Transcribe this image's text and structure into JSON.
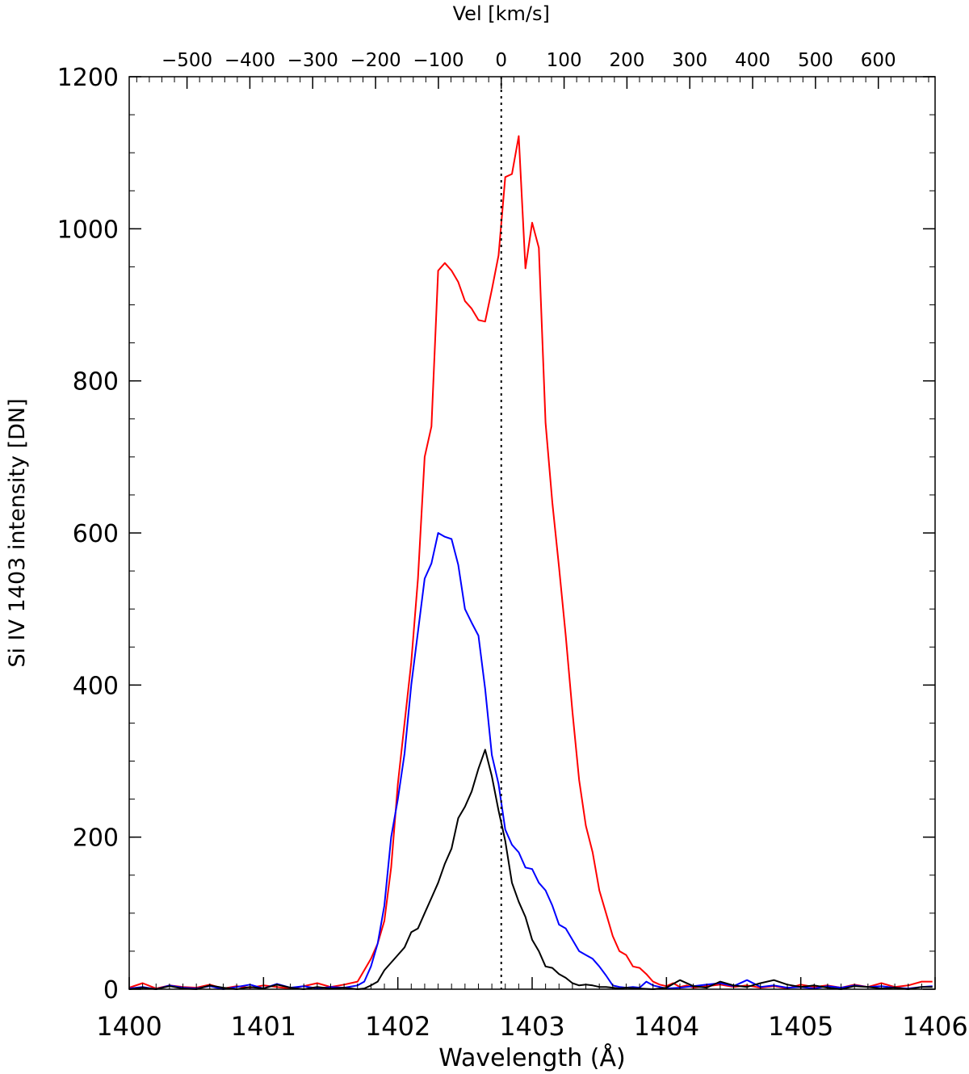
{
  "chart_data": {
    "type": "line",
    "xlabel": "Wavelength (Å)",
    "ylabel": "Si IV 1403 intensity [DN]",
    "top_xlabel": "Vel [km/s]",
    "xlim": [
      1400,
      1406
    ],
    "ylim": [
      0,
      1200
    ],
    "x_ticks": [
      1400,
      1401,
      1402,
      1403,
      1404,
      1405,
      1406
    ],
    "y_ticks": [
      0,
      200,
      400,
      600,
      800,
      1000,
      1200
    ],
    "top_ticks": [
      "−500",
      "−400",
      "−300",
      "−200",
      "−100",
      "0",
      "100",
      "200",
      "300",
      "400",
      "500",
      "600"
    ],
    "top_tick_values": [
      -500,
      -400,
      -300,
      -200,
      -100,
      0,
      100,
      200,
      300,
      400,
      500,
      600
    ],
    "rest_wavelength": 1402.77,
    "reference_line": {
      "x": 1402.77,
      "style": "dotted"
    },
    "grid": false,
    "series": [
      {
        "color": "#ff0000",
        "x": [
          1400.0,
          1400.1,
          1400.2,
          1400.3,
          1400.4,
          1400.5,
          1400.6,
          1400.7,
          1400.8,
          1400.9,
          1401.0,
          1401.1,
          1401.2,
          1401.3,
          1401.4,
          1401.5,
          1401.6,
          1401.7,
          1401.75,
          1401.8,
          1401.85,
          1401.9,
          1401.95,
          1402.0,
          1402.05,
          1402.1,
          1402.15,
          1402.2,
          1402.25,
          1402.3,
          1402.35,
          1402.4,
          1402.45,
          1402.5,
          1402.55,
          1402.6,
          1402.65,
          1402.7,
          1402.75,
          1402.8,
          1402.85,
          1402.9,
          1402.95,
          1403.0,
          1403.05,
          1403.1,
          1403.15,
          1403.2,
          1403.25,
          1403.3,
          1403.35,
          1403.4,
          1403.45,
          1403.5,
          1403.55,
          1403.6,
          1403.65,
          1403.7,
          1403.75,
          1403.8,
          1403.85,
          1403.9,
          1403.95,
          1404.0,
          1404.05,
          1404.1,
          1404.15,
          1404.2,
          1404.3,
          1404.4,
          1404.5,
          1404.6,
          1404.7,
          1404.8,
          1404.9,
          1405.0,
          1405.1,
          1405.2,
          1405.3,
          1405.4,
          1405.5,
          1405.6,
          1405.7,
          1405.8,
          1405.9,
          1405.98
        ],
        "y": [
          2,
          8,
          1,
          5,
          3,
          2,
          6,
          1,
          4,
          2,
          5,
          3,
          1,
          4,
          8,
          3,
          6,
          10,
          25,
          40,
          60,
          90,
          160,
          270,
          350,
          430,
          540,
          700,
          740,
          945,
          955,
          945,
          930,
          905,
          895,
          880,
          878,
          920,
          965,
          1068,
          1072,
          1122,
          948,
          1008,
          975,
          745,
          640,
          555,
          465,
          365,
          275,
          215,
          180,
          130,
          100,
          70,
          50,
          45,
          30,
          28,
          20,
          10,
          6,
          4,
          8,
          3,
          5,
          2,
          4,
          6,
          3,
          5,
          2,
          4,
          1,
          6,
          3,
          5,
          2,
          6,
          3,
          8,
          3,
          5,
          10,
          10
        ]
      },
      {
        "color": "#0000ff",
        "x": [
          1400.0,
          1400.1,
          1400.2,
          1400.3,
          1400.4,
          1400.5,
          1400.6,
          1400.7,
          1400.8,
          1400.9,
          1401.0,
          1401.1,
          1401.2,
          1401.3,
          1401.4,
          1401.5,
          1401.6,
          1401.7,
          1401.75,
          1401.8,
          1401.85,
          1401.9,
          1401.95,
          1402.0,
          1402.05,
          1402.1,
          1402.15,
          1402.2,
          1402.25,
          1402.3,
          1402.35,
          1402.4,
          1402.45,
          1402.5,
          1402.55,
          1402.6,
          1402.65,
          1402.7,
          1402.75,
          1402.8,
          1402.85,
          1402.9,
          1402.95,
          1403.0,
          1403.05,
          1403.1,
          1403.15,
          1403.2,
          1403.25,
          1403.3,
          1403.35,
          1403.4,
          1403.45,
          1403.5,
          1403.55,
          1403.6,
          1403.65,
          1403.7,
          1403.75,
          1403.8,
          1403.85,
          1403.9,
          1403.95,
          1404.0,
          1404.1,
          1404.2,
          1404.3,
          1404.4,
          1404.5,
          1404.6,
          1404.7,
          1404.8,
          1404.9,
          1405.0,
          1405.1,
          1405.2,
          1405.3,
          1405.4,
          1405.5,
          1405.6,
          1405.7,
          1405.8,
          1405.9,
          1405.98
        ],
        "y": [
          1,
          3,
          0,
          5,
          2,
          1,
          4,
          0,
          3,
          6,
          1,
          7,
          2,
          4,
          1,
          3,
          2,
          5,
          10,
          30,
          60,
          110,
          200,
          250,
          310,
          400,
          470,
          540,
          560,
          600,
          595,
          592,
          558,
          500,
          482,
          465,
          395,
          308,
          270,
          210,
          190,
          180,
          160,
          158,
          140,
          130,
          110,
          85,
          80,
          65,
          50,
          45,
          40,
          30,
          18,
          5,
          3,
          2,
          3,
          2,
          10,
          5,
          3,
          1,
          2,
          4,
          6,
          8,
          4,
          12,
          3,
          5,
          2,
          3,
          1,
          4,
          2,
          5,
          3,
          4,
          2,
          1,
          3,
          4
        ]
      },
      {
        "color": "#000000",
        "x": [
          1400.0,
          1400.1,
          1400.2,
          1400.3,
          1400.4,
          1400.5,
          1400.6,
          1400.7,
          1400.8,
          1400.9,
          1401.0,
          1401.1,
          1401.2,
          1401.3,
          1401.4,
          1401.5,
          1401.6,
          1401.7,
          1401.75,
          1401.8,
          1401.85,
          1401.9,
          1401.95,
          1402.0,
          1402.05,
          1402.1,
          1402.15,
          1402.2,
          1402.25,
          1402.3,
          1402.35,
          1402.4,
          1402.45,
          1402.5,
          1402.55,
          1402.6,
          1402.65,
          1402.7,
          1402.75,
          1402.8,
          1402.85,
          1402.9,
          1402.95,
          1403.0,
          1403.05,
          1403.1,
          1403.15,
          1403.2,
          1403.25,
          1403.3,
          1403.35,
          1403.4,
          1403.45,
          1403.5,
          1403.55,
          1403.6,
          1403.65,
          1403.7,
          1403.8,
          1403.9,
          1404.0,
          1404.1,
          1404.2,
          1404.3,
          1404.4,
          1404.5,
          1404.6,
          1404.7,
          1404.8,
          1404.9,
          1405.0,
          1405.1,
          1405.2,
          1405.3,
          1405.4,
          1405.5,
          1405.6,
          1405.7,
          1405.8,
          1405.9,
          1405.98
        ],
        "y": [
          0,
          2,
          0,
          4,
          1,
          0,
          5,
          2,
          0,
          3,
          1,
          6,
          2,
          0,
          3,
          1,
          2,
          0,
          1,
          5,
          10,
          25,
          35,
          45,
          55,
          75,
          80,
          100,
          120,
          140,
          165,
          185,
          225,
          240,
          260,
          290,
          315,
          280,
          235,
          195,
          140,
          115,
          95,
          65,
          50,
          30,
          28,
          20,
          15,
          8,
          5,
          6,
          5,
          3,
          3,
          2,
          1,
          2,
          1,
          0,
          2,
          12,
          4,
          2,
          10,
          5,
          3,
          8,
          12,
          6,
          3,
          5,
          2,
          0,
          4,
          3,
          1,
          2,
          0,
          3,
          3
        ]
      }
    ]
  }
}
